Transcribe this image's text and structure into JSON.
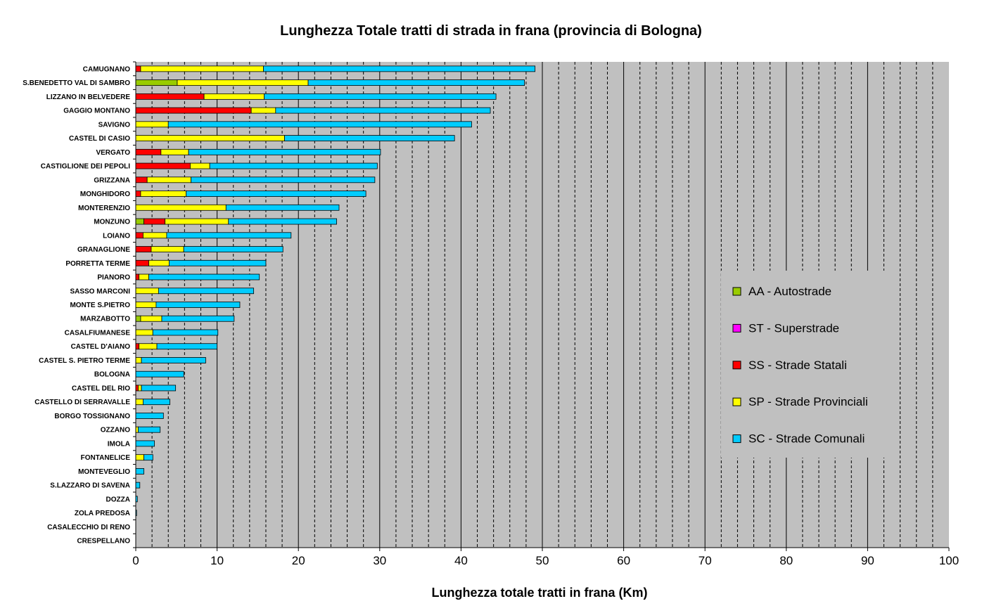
{
  "chart_data": {
    "type": "bar",
    "orientation": "horizontal",
    "stacked": true,
    "title": "Lunghezza Totale tratti di strada in frana (provincia di Bologna)",
    "xlabel": "Lunghezza totale tratti in frana (Km)",
    "ylabel": "",
    "xlim": [
      0,
      100
    ],
    "x_major_step": 10,
    "x_minor_step": 2,
    "grid": true,
    "legend_position": "right",
    "plot_background": "#c0c0c0",
    "categories": [
      "CAMUGNANO",
      "S.BENEDETTO VAL DI SAMBRO",
      "LIZZANO IN BELVEDERE",
      "GAGGIO MONTANO",
      "SAVIGNO",
      "CASTEL DI CASIO",
      "VERGATO",
      "CASTIGLIONE DEI PEPOLI",
      "GRIZZANA",
      "MONGHIDORO",
      "MONTERENZIO",
      "MONZUNO",
      "LOIANO",
      "GRANAGLIONE",
      "PORRETTA TERME",
      "PIANORO",
      "SASSO MARCONI",
      "MONTE S.PIETRO",
      "MARZABOTTO",
      "CASALFIUMANESE",
      "CASTEL D'AIANO",
      "CASTEL S. PIETRO TERME",
      "BOLOGNA",
      "CASTEL DEL RIO",
      "CASTELLO DI SERRAVALLE",
      "BORGO TOSSIGNANO",
      "OZZANO",
      "IMOLA",
      "FONTANELICE",
      "MONTEVEGLIO",
      "S.LAZZARO DI SAVENA",
      "DOZZA",
      "ZOLA PREDOSA",
      "CASALECCHIO DI RENO",
      "CRESPELLANO"
    ],
    "series": [
      {
        "name": "AA - Autostrade",
        "color": "#99cc00",
        "values": [
          0,
          5.1,
          0,
          0,
          0,
          0,
          0,
          0,
          0,
          0,
          0,
          1.0,
          0,
          0,
          0,
          0,
          0,
          0,
          0.6,
          0,
          0,
          0,
          0,
          0,
          0,
          0,
          0,
          0,
          0,
          0,
          0,
          0,
          0,
          0,
          0
        ]
      },
      {
        "name": "ST - Superstrade",
        "color": "#ff00ff",
        "values": [
          0,
          0,
          0,
          0,
          0,
          0,
          0,
          0,
          0,
          0,
          0,
          0,
          0,
          0,
          0,
          0,
          0,
          0,
          0,
          0,
          0,
          0,
          0,
          0,
          0,
          0,
          0,
          0,
          0,
          0,
          0,
          0,
          0,
          0,
          0
        ]
      },
      {
        "name": "SS - Strade Statali",
        "color": "#ff0000",
        "values": [
          0.6,
          0,
          8.4,
          14.2,
          0,
          0,
          3.1,
          6.7,
          1.4,
          0.6,
          0,
          2.6,
          0.9,
          1.9,
          1.6,
          0.4,
          0,
          0,
          0,
          0,
          0.4,
          0,
          0,
          0.3,
          0,
          0,
          0,
          0,
          0,
          0,
          0,
          0,
          0,
          0,
          0
        ]
      },
      {
        "name": "SP - Strade Provinciali",
        "color": "#ffff00",
        "values": [
          15.1,
          16.1,
          7.4,
          3.0,
          4.0,
          18.3,
          3.4,
          2.4,
          5.4,
          5.6,
          11.1,
          7.8,
          2.9,
          4.0,
          2.5,
          1.2,
          2.8,
          2.5,
          2.6,
          2.1,
          2.2,
          0.7,
          0,
          0.4,
          0.9,
          0,
          0.3,
          0,
          1.0,
          0,
          0,
          0,
          0,
          0,
          0
        ]
      },
      {
        "name": "SC - Strade Comunali",
        "color": "#00ccff",
        "values": [
          33.4,
          26.6,
          28.5,
          26.4,
          37.3,
          20.9,
          23.6,
          20.6,
          22.6,
          22.1,
          13.9,
          13.3,
          15.3,
          12.2,
          11.9,
          13.6,
          11.7,
          10.3,
          8.9,
          8.0,
          7.4,
          7.9,
          5.9,
          4.2,
          3.3,
          3.4,
          2.7,
          2.3,
          1.1,
          1.0,
          0.5,
          0.2,
          0.1,
          0,
          0
        ]
      }
    ]
  }
}
